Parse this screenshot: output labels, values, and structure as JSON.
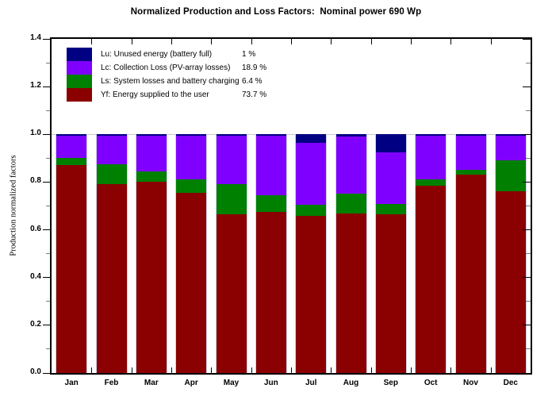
{
  "page": {
    "background": "#FFFFFF",
    "border_color": "#000000"
  },
  "chart_data": {
    "type": "bar",
    "stacked": true,
    "title": "Normalized Production and Loss Factors:  Nominal power 690 Wp",
    "xlabel": "",
    "ylabel": "Production normalized factors",
    "ylim": [
      0,
      1.4
    ],
    "ytick_major_step": 0.2,
    "ytick_minor_step": 0.1,
    "grid": "single light line at y=1.0",
    "legend_position": "top-left-inside",
    "categories": [
      "Jan",
      "Feb",
      "Mar",
      "Apr",
      "May",
      "Jun",
      "Jul",
      "Aug",
      "Sep",
      "Oct",
      "Nov",
      "Dec"
    ],
    "series": [
      {
        "id": "yf",
        "name": "Yf: Energy supplied to the user",
        "avg_label": "73.7 %",
        "color": "#8B0000",
        "values": [
          0.87,
          0.79,
          0.8,
          0.755,
          0.665,
          0.675,
          0.66,
          0.67,
          0.665,
          0.785,
          0.83,
          0.76
        ]
      },
      {
        "id": "ls",
        "name": "Ls: System losses and battery charging",
        "avg_label": "6.4 %",
        "color": "#008000",
        "values": [
          0.03,
          0.085,
          0.045,
          0.055,
          0.125,
          0.07,
          0.045,
          0.08,
          0.045,
          0.025,
          0.02,
          0.13
        ]
      },
      {
        "id": "lc",
        "name": "Lc: Collection Loss (PV-array losses)",
        "avg_label": "18.9 %",
        "color": "#8000FF",
        "values": [
          0.1,
          0.125,
          0.155,
          0.19,
          0.21,
          0.255,
          0.26,
          0.242,
          0.215,
          0.19,
          0.15,
          0.11
        ]
      },
      {
        "id": "lu",
        "name": "Lu: Unused energy (battery full)",
        "avg_label": "1 %",
        "color": "#000082",
        "values": [
          0,
          0,
          0,
          0,
          0,
          0,
          0.035,
          0.008,
          0.075,
          0,
          0,
          0
        ]
      }
    ],
    "legend_order_top_to_bottom": [
      "lu",
      "lc",
      "ls",
      "yf"
    ]
  }
}
